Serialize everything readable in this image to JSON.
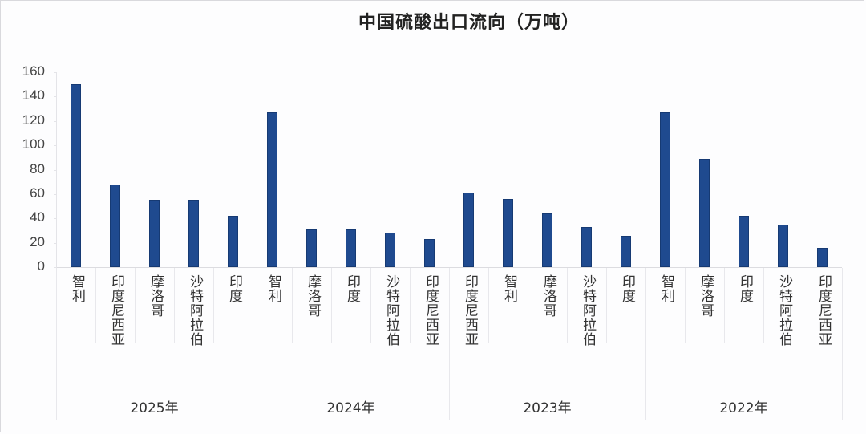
{
  "chart_data": {
    "type": "bar",
    "title": "中国硫酸出口流向（万吨）",
    "xlabel": "",
    "ylabel": "",
    "ylim": [
      0,
      160
    ],
    "yticks": [
      0,
      20,
      40,
      60,
      80,
      100,
      120,
      140,
      160
    ],
    "grid": false,
    "legend": null,
    "bar_color": "#1f4a8f",
    "groups": [
      {
        "label": "2025年",
        "categories": [
          "智利",
          "印度尼西亚",
          "摩洛哥",
          "沙特阿拉伯",
          "印度"
        ],
        "values": [
          150,
          68,
          55,
          55,
          42
        ]
      },
      {
        "label": "2024年",
        "categories": [
          "智利",
          "摩洛哥",
          "印度",
          "沙特阿拉伯",
          "印度尼西亚"
        ],
        "values": [
          127,
          31,
          31,
          28,
          23
        ]
      },
      {
        "label": "2023年",
        "categories": [
          "印度尼西亚",
          "智利",
          "摩洛哥",
          "沙特阿拉伯",
          "印度"
        ],
        "values": [
          61,
          56,
          44,
          33,
          26
        ]
      },
      {
        "label": "2022年",
        "categories": [
          "智利",
          "摩洛哥",
          "印度",
          "沙特阿拉伯",
          "印度尼西亚"
        ],
        "values": [
          127,
          89,
          42,
          35,
          16
        ]
      }
    ]
  }
}
